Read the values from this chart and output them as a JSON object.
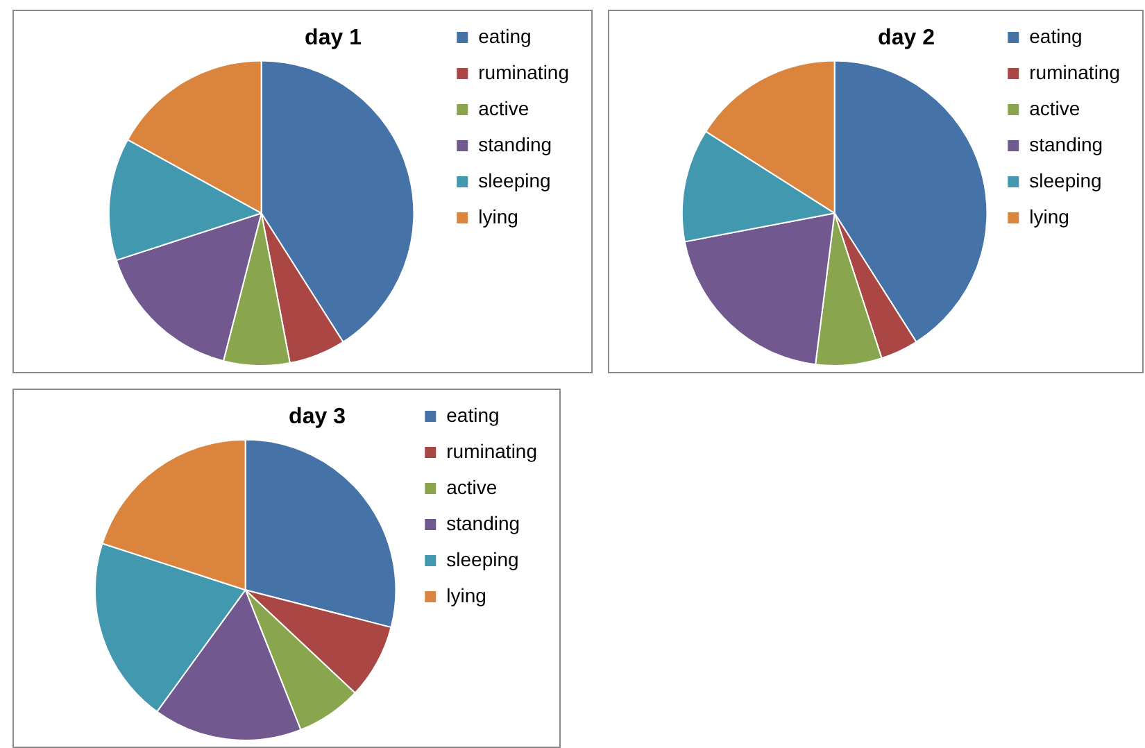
{
  "chart_data": [
    {
      "type": "pie",
      "title": "day 1",
      "categories": [
        "eating",
        "ruminating",
        "active",
        "standing",
        "sleeping",
        "lying"
      ],
      "values": [
        41,
        6,
        7,
        16,
        13,
        17
      ],
      "colors": [
        "#4572a7",
        "#aa4643",
        "#89a54e",
        "#71588f",
        "#4198af",
        "#db843d"
      ],
      "legend": "right"
    },
    {
      "type": "pie",
      "title": "day 2",
      "categories": [
        "eating",
        "ruminating",
        "active",
        "standing",
        "sleeping",
        "lying"
      ],
      "values": [
        41,
        4,
        7,
        20,
        12,
        16
      ],
      "colors": [
        "#4572a7",
        "#aa4643",
        "#89a54e",
        "#71588f",
        "#4198af",
        "#db843d"
      ],
      "legend": "right"
    },
    {
      "type": "pie",
      "title": "day 3",
      "categories": [
        "eating",
        "ruminating",
        "active",
        "standing",
        "sleeping",
        "lying"
      ],
      "values": [
        29,
        8,
        7,
        16,
        20,
        20
      ],
      "colors": [
        "#4572a7",
        "#aa4643",
        "#89a54e",
        "#71588f",
        "#4198af",
        "#db843d"
      ],
      "legend": "right"
    }
  ]
}
